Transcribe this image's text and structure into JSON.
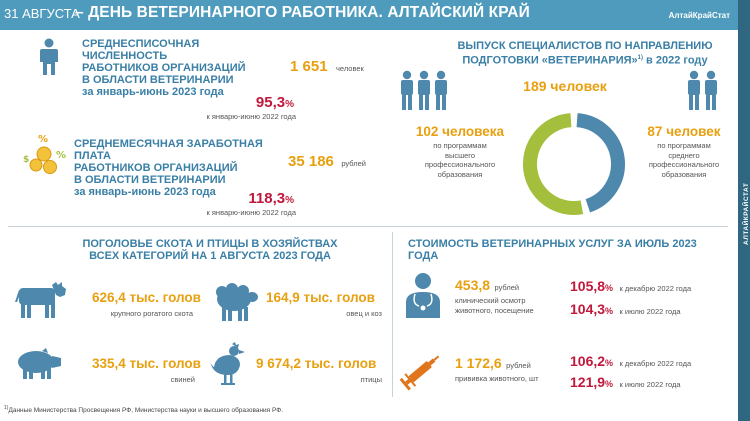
{
  "header": {
    "date": "31 АВГУСТА",
    "title": "– ДЕНЬ ВЕТЕРИНАРНОГО РАБОТНИКА. АЛТАЙСКИЙ КРАЙ",
    "brand": "АлтайКрайСтат",
    "side_label": "АЛТАЙКРАЙСТАТ"
  },
  "employees": {
    "title_l1": "СРЕДНЕСПИСОЧНАЯ ЧИСЛЕННОСТЬ",
    "title_l2": "РАБОТНИКОВ ОРГАНИЗАЦИЙ",
    "title_l3": "В ОБЛАСТИ ВЕТЕРИНАРИИ",
    "title_l4": "за январь-июнь 2023 года",
    "value": "1 651",
    "unit": "человек",
    "percent_num": "95,3",
    "percent_sign": "%",
    "percent_note": "к январю-июню 2022 года"
  },
  "salary": {
    "title_l1": "СРЕДНЕМЕСЯЧНАЯ ЗАРАБОТНАЯ ПЛАТА",
    "title_l2": "РАБОТНИКОВ ОРГАНИЗАЦИЙ",
    "title_l3": "В ОБЛАСТИ ВЕТЕРИНАРИИ",
    "title_l4": "за январь-июнь 2023 года",
    "value": "35 186",
    "unit": "рублей",
    "percent_num": "118,3",
    "percent_sign": "%",
    "percent_note": "к январю-июню 2022 года"
  },
  "graduates": {
    "title_l1": "ВЫПУСК СПЕЦИАЛИСТОВ ПО НАПРАВЛЕНИЮ",
    "title_l2_pre": "ПОДГОТОВКИ «ВЕТЕРИНАРИЯ»",
    "title_l2_sup": "1)",
    "title_l2_post": " в 2022 году",
    "total": "189 человек",
    "higher_value": "102 человека",
    "higher_l1": "по программам",
    "higher_l2": "высшего",
    "higher_l3": "профессионального",
    "higher_l4": "образования",
    "secondary_value": "87 человек",
    "secondary_l1": "по программам",
    "secondary_l2": "среднего",
    "secondary_l3": "профессионального",
    "secondary_l4": "образования",
    "colors": {
      "higher": "#a3bf3c",
      "secondary": "#4e88ad"
    }
  },
  "livestock": {
    "title_l1": "ПОГОЛОВЬЕ СКОТА И ПТИЦЫ В ХОЗЯЙСТВАХ",
    "title_l2": "ВСЕХ КАТЕГОРИЙ НА 1 АВГУСТА 2023 ГОДА",
    "cattle_value": "626,4 тыс. голов",
    "cattle_label": "крупного рогатого скота",
    "sheep_value": "164,9 тыс. голов",
    "sheep_label": "овец и коз",
    "pigs_value": "335,4 тыс. голов",
    "pigs_label": "свиней",
    "poultry_value": "9 674,2 тыс. голов",
    "poultry_label": "птицы"
  },
  "services": {
    "title": "СТОИМОСТЬ ВЕТЕРИНАРНЫХ УСЛУГ ЗА ИЮЛЬ 2023 ГОДА",
    "exam_value": "453,8",
    "exam_unit": "рублей",
    "exam_l1": "клинический осмотр",
    "exam_l2": "животного, посещение",
    "exam_pct_dec_num": "105,8",
    "exam_pct_dec_sign": "%",
    "exam_pct_dec_note": "к декабрю 2022 года",
    "exam_pct_jul_num": "104,3",
    "exam_pct_jul_sign": "%",
    "exam_pct_jul_note": "к июлю 2022 года",
    "vacc_value": "1 172,6",
    "vacc_unit": "рублей",
    "vacc_label": "прививка животного, шт",
    "vacc_pct_dec_num": "106,2",
    "vacc_pct_dec_sign": "%",
    "vacc_pct_dec_note": "к декабрю 2022 года",
    "vacc_pct_jul_num": "121,9",
    "vacc_pct_jul_sign": "%",
    "vacc_pct_jul_note": "к июлю 2022 года"
  },
  "footnote": {
    "sup": "1)",
    "text": "Данные Министерства Просвещения РФ, Министерства науки и высшего образования РФ."
  }
}
